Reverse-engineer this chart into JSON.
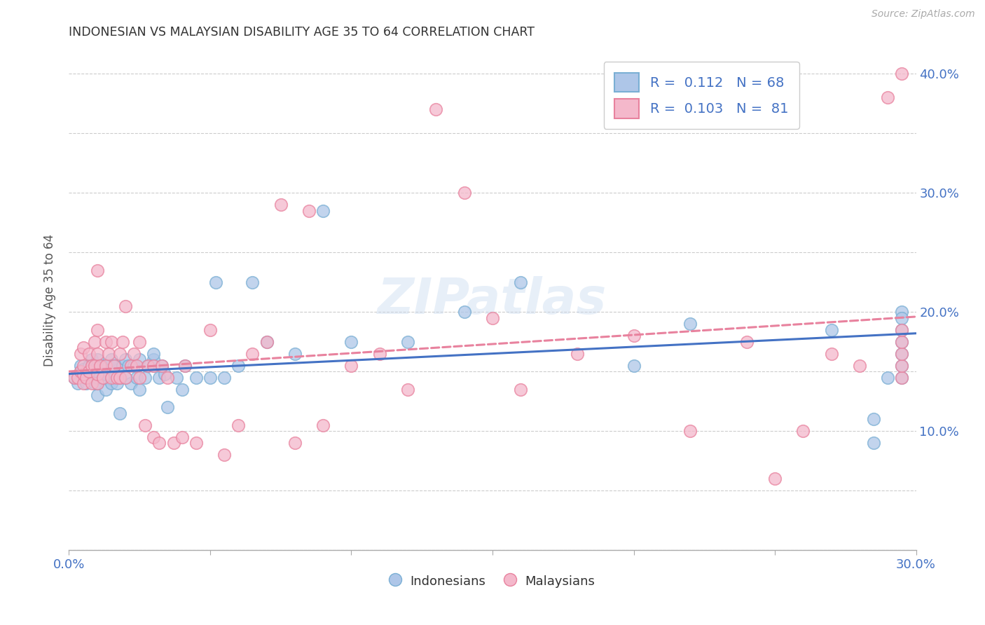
{
  "title": "INDONESIAN VS MALAYSIAN DISABILITY AGE 35 TO 64 CORRELATION CHART",
  "source": "Source: ZipAtlas.com",
  "ylabel": "Disability Age 35 to 64",
  "xlim": [
    0.0,
    0.3
  ],
  "ylim": [
    0.0,
    0.42
  ],
  "x_ticks": [
    0.0,
    0.05,
    0.1,
    0.15,
    0.2,
    0.25,
    0.3
  ],
  "x_tick_labels": [
    "0.0%",
    "",
    "",
    "",
    "",
    "",
    "30.0%"
  ],
  "y_ticks": [
    0.0,
    0.05,
    0.1,
    0.15,
    0.2,
    0.25,
    0.3,
    0.35,
    0.4
  ],
  "y_tick_labels_right": [
    "",
    "",
    "10.0%",
    "",
    "20.0%",
    "",
    "30.0%",
    "",
    "40.0%"
  ],
  "indonesian_color": "#aec6e8",
  "indonesian_edge_color": "#7aafd4",
  "malaysian_color": "#f4b8cb",
  "malaysian_edge_color": "#e8829e",
  "indonesian_trend_color": "#4472c4",
  "malaysian_trend_color": "#e8829e",
  "legend_text_color": "#4472c4",
  "watermark": "ZIPatlas",
  "indonesian_scatter_x": [
    0.002,
    0.003,
    0.004,
    0.004,
    0.005,
    0.005,
    0.006,
    0.007,
    0.008,
    0.008,
    0.009,
    0.009,
    0.01,
    0.01,
    0.01,
    0.01,
    0.01,
    0.01,
    0.012,
    0.012,
    0.013,
    0.013,
    0.014,
    0.015,
    0.015,
    0.015,
    0.016,
    0.016,
    0.017,
    0.018,
    0.018,
    0.019,
    0.02,
    0.02,
    0.021,
    0.022,
    0.023,
    0.024,
    0.025,
    0.025,
    0.027,
    0.028,
    0.03,
    0.03,
    0.03,
    0.032,
    0.033,
    0.034,
    0.035,
    0.038,
    0.04,
    0.041,
    0.045,
    0.05,
    0.052,
    0.055,
    0.06,
    0.065,
    0.07,
    0.08,
    0.09,
    0.1,
    0.12,
    0.14,
    0.16,
    0.2,
    0.22,
    0.27
  ],
  "indonesian_scatter_y": [
    0.145,
    0.14,
    0.15,
    0.155,
    0.148,
    0.152,
    0.14,
    0.155,
    0.145,
    0.16,
    0.14,
    0.155,
    0.13,
    0.14,
    0.145,
    0.15,
    0.155,
    0.16,
    0.145,
    0.155,
    0.135,
    0.148,
    0.155,
    0.14,
    0.155,
    0.16,
    0.145,
    0.155,
    0.14,
    0.115,
    0.145,
    0.155,
    0.145,
    0.16,
    0.155,
    0.14,
    0.155,
    0.145,
    0.135,
    0.16,
    0.145,
    0.155,
    0.155,
    0.16,
    0.165,
    0.145,
    0.155,
    0.148,
    0.12,
    0.145,
    0.135,
    0.155,
    0.145,
    0.145,
    0.225,
    0.145,
    0.155,
    0.225,
    0.175,
    0.165,
    0.285,
    0.175,
    0.175,
    0.2,
    0.225,
    0.155,
    0.19,
    0.185
  ],
  "indonesian_scatter_x2": [
    0.285,
    0.285,
    0.29,
    0.295,
    0.295,
    0.295,
    0.295,
    0.295,
    0.295,
    0.295
  ],
  "indonesian_scatter_y2": [
    0.11,
    0.09,
    0.145,
    0.2,
    0.195,
    0.185,
    0.175,
    0.165,
    0.155,
    0.145
  ],
  "malaysian_scatter_x": [
    0.002,
    0.003,
    0.004,
    0.004,
    0.005,
    0.005,
    0.005,
    0.005,
    0.006,
    0.007,
    0.007,
    0.008,
    0.008,
    0.009,
    0.009,
    0.01,
    0.01,
    0.01,
    0.01,
    0.01,
    0.011,
    0.012,
    0.013,
    0.013,
    0.014,
    0.015,
    0.015,
    0.016,
    0.017,
    0.018,
    0.018,
    0.019,
    0.02,
    0.02,
    0.022,
    0.023,
    0.024,
    0.025,
    0.025,
    0.027,
    0.028,
    0.03,
    0.03,
    0.032,
    0.033,
    0.035,
    0.037,
    0.04,
    0.041,
    0.045,
    0.05,
    0.055,
    0.06,
    0.065,
    0.07,
    0.075,
    0.08,
    0.085,
    0.09,
    0.1,
    0.11,
    0.12,
    0.13,
    0.14,
    0.15,
    0.16,
    0.18,
    0.2,
    0.22,
    0.24,
    0.25,
    0.26,
    0.27,
    0.28,
    0.29,
    0.295,
    0.295,
    0.295,
    0.295,
    0.295,
    0.295
  ],
  "malaysian_scatter_y": [
    0.145,
    0.145,
    0.15,
    0.165,
    0.14,
    0.148,
    0.155,
    0.17,
    0.145,
    0.15,
    0.165,
    0.14,
    0.155,
    0.155,
    0.175,
    0.14,
    0.148,
    0.165,
    0.185,
    0.235,
    0.155,
    0.145,
    0.155,
    0.175,
    0.165,
    0.145,
    0.175,
    0.155,
    0.145,
    0.145,
    0.165,
    0.175,
    0.145,
    0.205,
    0.155,
    0.165,
    0.155,
    0.145,
    0.175,
    0.105,
    0.155,
    0.095,
    0.155,
    0.09,
    0.155,
    0.145,
    0.09,
    0.095,
    0.155,
    0.09,
    0.185,
    0.08,
    0.105,
    0.165,
    0.175,
    0.29,
    0.09,
    0.285,
    0.105,
    0.155,
    0.165,
    0.135,
    0.37,
    0.3,
    0.195,
    0.135,
    0.165,
    0.18,
    0.1,
    0.175,
    0.06,
    0.1,
    0.165,
    0.155,
    0.38,
    0.145,
    0.155,
    0.165,
    0.175,
    0.185,
    0.4
  ],
  "indonesian_trend_x": [
    0.0,
    0.3
  ],
  "indonesian_trend_y": [
    0.148,
    0.182
  ],
  "malaysian_trend_x": [
    0.0,
    0.3
  ],
  "malaysian_trend_y": [
    0.15,
    0.196
  ],
  "background_color": "#ffffff",
  "grid_color": "#cccccc",
  "legend_R_indonesian": "0.112",
  "legend_N_indonesian": "68",
  "legend_R_malaysian": "0.103",
  "legend_N_malaysian": "81"
}
